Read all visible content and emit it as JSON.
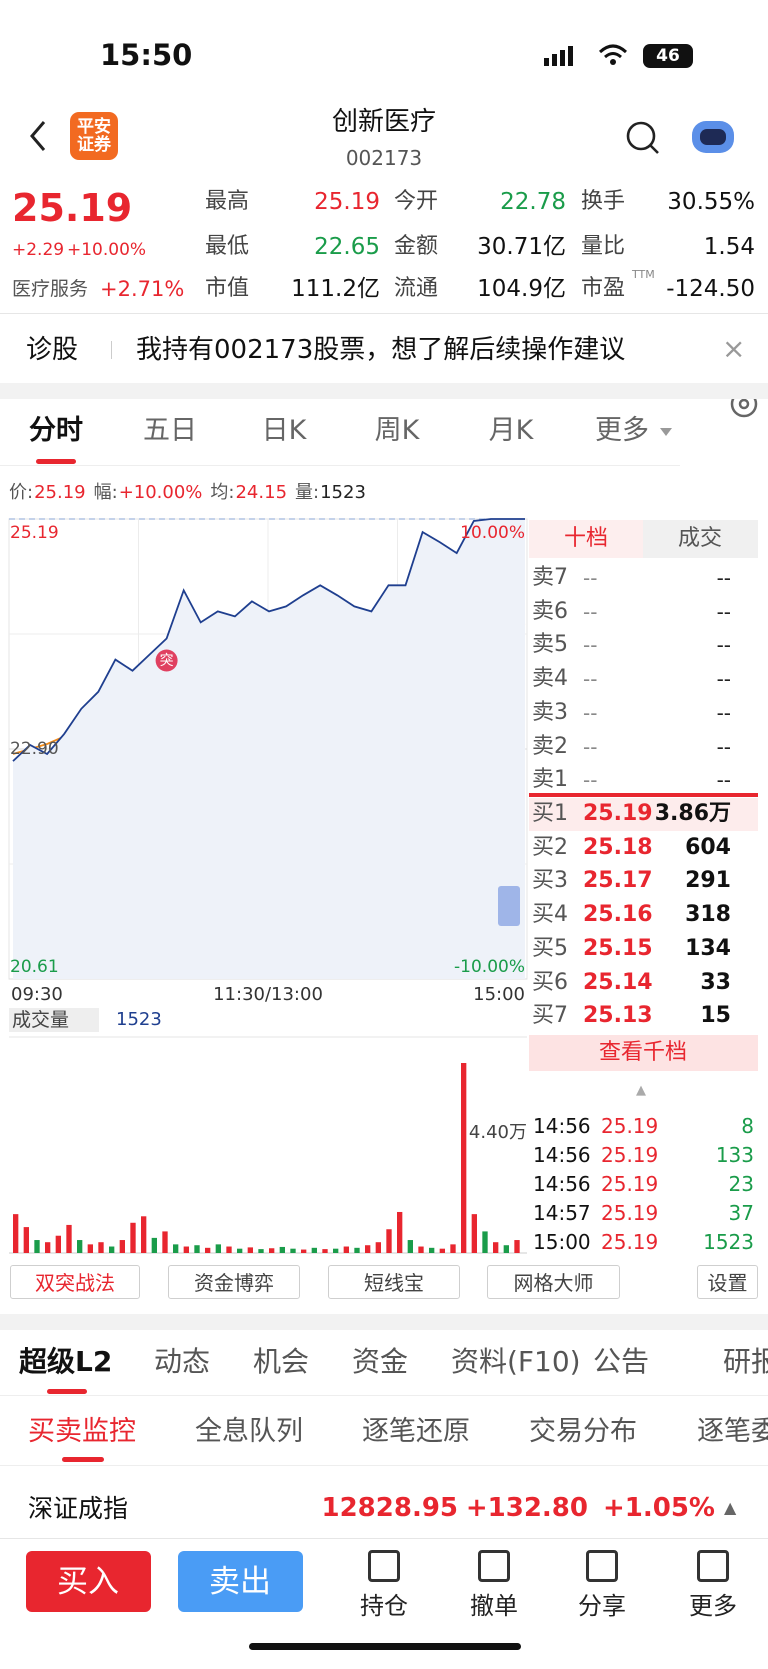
{
  "status_bar": {
    "time": "15:50",
    "battery": "46"
  },
  "header": {
    "broker_logo": "平安证券",
    "name": "创新医疗",
    "code": "002173"
  },
  "quote": {
    "price": "25.19",
    "change": "+2.29",
    "change_pct": "+10.00%",
    "sector": "医疗服务",
    "sector_pct": "+2.71%",
    "stats": [
      {
        "label": "最高",
        "value": "25.19",
        "color": "#e8262f"
      },
      {
        "label": "今开",
        "value": "22.78",
        "color": "#1a9c4a"
      },
      {
        "label": "换手",
        "value": "30.55%",
        "color": "#111111"
      },
      {
        "label": "最低",
        "value": "22.65",
        "color": "#1a9c4a"
      },
      {
        "label": "金额",
        "value": "30.71亿",
        "color": "#111111"
      },
      {
        "label": "量比",
        "value": "1.54",
        "color": "#111111"
      },
      {
        "label": "市值",
        "value": "111.2亿",
        "color": "#111111"
      },
      {
        "label": "流通",
        "value": "104.9亿",
        "color": "#111111"
      },
      {
        "label": "市盈",
        "value": "-124.50",
        "color": "#111111"
      }
    ],
    "ttm": "TTM"
  },
  "diagnosis": {
    "label": "诊股",
    "prompt": "我持有002173股票，想了解后续操作建议"
  },
  "chart_tabs": [
    "分时",
    "五日",
    "日K",
    "周K",
    "月K",
    "更多"
  ],
  "info": [
    {
      "label": "价:",
      "value": "25.19"
    },
    {
      "label": "幅:",
      "value": "+10.00%"
    },
    {
      "label": "均:",
      "value": "24.15"
    },
    {
      "label": "量:",
      "value": "1523"
    }
  ],
  "chart": {
    "type": "line",
    "ylim": [
      20.61,
      25.19
    ],
    "yticks": [
      20.61,
      {
        "value": 22.9,
        "label": "22.90"
      },
      25.19
    ],
    "pct_ticks": [
      {
        "value": 25.19,
        "label": "10.00%"
      },
      {
        "value": 20.61,
        "label": "-10.00%"
      }
    ],
    "xticks": [
      "09:30",
      "11:30/13:00",
      "15:00"
    ],
    "price": {
      "color": "#1f3f8f",
      "values": [
        22.78,
        22.94,
        22.85,
        23.05,
        23.3,
        23.47,
        23.79,
        23.68,
        23.84,
        24.0,
        24.48,
        24.16,
        24.27,
        24.22,
        24.37,
        24.27,
        24.32,
        24.43,
        24.53,
        24.43,
        24.32,
        24.27,
        24.53,
        24.53,
        25.06,
        24.96,
        24.85,
        25.17,
        25.19,
        25.19,
        25.19
      ]
    },
    "average": {
      "color": "#f28c1a",
      "values": [
        22.85,
        22.95,
        23.1,
        23.3,
        23.5,
        23.68,
        23.76,
        23.8,
        23.85,
        23.9,
        23.93,
        23.96,
        24.0,
        24.02,
        24.12,
        24.15
      ]
    },
    "annotation": "突"
  },
  "volume": {
    "type": "bar",
    "label": "成交量",
    "current": "1523",
    "ylim": [
      0,
      44000
    ],
    "max_label": {
      "value": 44000,
      "label": "4.40万"
    },
    "values": [
      9000,
      6000,
      3000,
      2500,
      4000,
      6500,
      3000,
      2000,
      2500,
      1500,
      3000,
      7000,
      8500,
      3500,
      5000,
      2000,
      1500,
      1800,
      1200,
      2000,
      1500,
      1000,
      1300,
      900,
      1100,
      1400,
      1000,
      800,
      1200,
      900,
      1000,
      1500,
      1200,
      1800,
      2500,
      5500,
      9500,
      3000,
      1500,
      1200,
      1000,
      2000,
      44000,
      9000,
      5000,
      2500,
      1800,
      3000
    ],
    "colors": [
      "#e8262f",
      "#e8262f",
      "#1a9c4a",
      "#e8262f",
      "#e8262f",
      "#e8262f",
      "#1a9c4a",
      "#e8262f",
      "#e8262f",
      "#1a9c4a",
      "#e8262f",
      "#e8262f",
      "#e8262f",
      "#1a9c4a",
      "#e8262f",
      "#1a9c4a",
      "#e8262f",
      "#1a9c4a",
      "#e8262f",
      "#1a9c4a",
      "#e8262f",
      "#1a9c4a",
      "#e8262f",
      "#1a9c4a",
      "#e8262f",
      "#1a9c4a",
      "#1a9c4a",
      "#e8262f",
      "#1a9c4a",
      "#e8262f",
      "#1a9c4a",
      "#e8262f",
      "#1a9c4a",
      "#e8262f",
      "#e8262f",
      "#e8262f",
      "#e8262f",
      "#1a9c4a",
      "#e8262f",
      "#1a9c4a",
      "#e8262f",
      "#e8262f",
      "#e8262f",
      "#e8262f",
      "#1a9c4a",
      "#e8262f",
      "#1a9c4a",
      "#e8262f"
    ]
  },
  "order_book": {
    "tabs": [
      "十档",
      "成交"
    ],
    "asks": [
      {
        "label": "卖7",
        "price": "--",
        "volume": "--"
      },
      {
        "label": "卖6",
        "price": "--",
        "volume": "--"
      },
      {
        "label": "卖5",
        "price": "--",
        "volume": "--"
      },
      {
        "label": "卖4",
        "price": "--",
        "volume": "--"
      },
      {
        "label": "卖3",
        "price": "--",
        "volume": "--"
      },
      {
        "label": "卖2",
        "price": "--",
        "volume": "--"
      },
      {
        "label": "卖1",
        "price": "--",
        "volume": "--"
      }
    ],
    "bids": [
      {
        "label": "买1",
        "price": "25.19",
        "volume": "3.86万"
      },
      {
        "label": "买2",
        "price": "25.18",
        "volume": "604"
      },
      {
        "label": "买3",
        "price": "25.17",
        "volume": "291"
      },
      {
        "label": "买4",
        "price": "25.16",
        "volume": "318"
      },
      {
        "label": "买5",
        "price": "25.15",
        "volume": "134"
      },
      {
        "label": "买6",
        "price": "25.14",
        "volume": "33"
      },
      {
        "label": "买7",
        "price": "25.13",
        "volume": "15"
      }
    ],
    "more": "查看千档"
  },
  "trades": [
    {
      "time": "14:56",
      "price": "25.19",
      "volume": "8"
    },
    {
      "time": "14:56",
      "price": "25.19",
      "volume": "133"
    },
    {
      "time": "14:56",
      "price": "25.19",
      "volume": "23"
    },
    {
      "time": "14:57",
      "price": "25.19",
      "volume": "37"
    },
    {
      "time": "15:00",
      "price": "25.19",
      "volume": "1523"
    }
  ],
  "tools": [
    "双突战法",
    "资金博弈",
    "短线宝",
    "网格大师",
    "设置"
  ],
  "section_tabs": [
    "超级L2",
    "动态",
    "机会",
    "资金",
    "资料(F10)",
    "公告",
    "研报"
  ],
  "sub_tabs": [
    "买卖监控",
    "全息队列",
    "逐笔还原",
    "交易分布",
    "逐笔委托"
  ],
  "index": {
    "name": "深证成指",
    "value": "12828.95",
    "change": "+132.80",
    "pct": "+1.05%"
  },
  "bottom_bar": {
    "buy": "买入",
    "sell": "卖出",
    "actions": [
      "持仓",
      "撤单",
      "分享",
      "更多"
    ]
  }
}
